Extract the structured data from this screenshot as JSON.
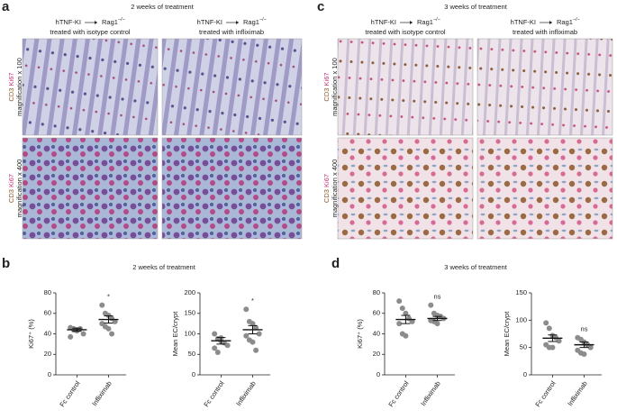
{
  "panels": [
    {
      "label": "a",
      "title": "2 weeks of treatment",
      "columns": [
        {
          "donor": "hTNF-KI",
          "recipient": "Rag1",
          "recipient_sup": "−/−",
          "treatment": "treated with isotype control"
        },
        {
          "donor": "hTNF-KI",
          "recipient": "Rag1",
          "recipient_sup": "−/−",
          "treatment": "treated with infliximab"
        }
      ],
      "rows": [
        {
          "stain_1": "CD3",
          "stain_2": "Ki67",
          "magnification": "magnification x 100"
        },
        {
          "stain_1": "CD3",
          "stain_2": "Ki67",
          "magnification": "magnification x 400"
        }
      ]
    },
    {
      "label": "b",
      "title": "2 weeks of treatment"
    },
    {
      "label": "c",
      "title": "3 weeks of treatment",
      "columns": [
        {
          "donor": "hTNF-KI",
          "recipient": "Rag1",
          "recipient_sup": "−/−",
          "treatment": "treated with isotype control"
        },
        {
          "donor": "hTNF-KI",
          "recipient": "Rag1",
          "recipient_sup": "−/−",
          "treatment": "treated with infliximab"
        }
      ],
      "rows": [
        {
          "stain_1": "CD3",
          "stain_2": "Ki67",
          "magnification": "magnification x 100"
        },
        {
          "stain_1": "CD3",
          "stain_2": "Ki67",
          "magnification": "magnification x 400"
        }
      ]
    },
    {
      "label": "d",
      "title": "3 weeks of treatment"
    }
  ],
  "chart_data": [
    {
      "type": "dot",
      "y_label": "Ki67⁺ (%)",
      "categories": [
        "Fc control",
        "Infliximab"
      ],
      "points": [
        [
          46,
          45,
          44,
          45,
          40,
          37,
          44,
          43
        ],
        [
          68,
          60,
          58,
          55,
          52,
          50,
          47,
          45,
          40
        ]
      ],
      "means": [
        44,
        54
      ],
      "sem": [
        1.5,
        3.5
      ],
      "significance": [
        null,
        "*"
      ],
      "ylim": [
        0,
        80
      ],
      "yticks": [
        0,
        20,
        40,
        60,
        80
      ],
      "color": "#8c8c8c"
    },
    {
      "type": "dot",
      "y_label": "Mean EC/crypt",
      "categories": [
        "Fc control",
        "Infliximab"
      ],
      "points": [
        [
          100,
          88,
          82,
          78,
          72,
          65,
          55,
          90
        ],
        [
          160,
          130,
          125,
          115,
          100,
          95,
          85,
          80,
          60
        ]
      ],
      "means": [
        83,
        110
      ],
      "sem": [
        8,
        10
      ],
      "significance": [
        null,
        "*"
      ],
      "ylim": [
        0,
        200
      ],
      "yticks": [
        0,
        50,
        100,
        150,
        200
      ],
      "color": "#8c8c8c"
    },
    {
      "type": "dot",
      "y_label": "Ki67⁺ (%)",
      "categories": [
        "Fc control",
        "Infliximab"
      ],
      "points": [
        [
          72,
          65,
          60,
          55,
          52,
          50,
          40,
          38
        ],
        [
          68,
          60,
          58,
          57,
          55,
          53,
          52,
          50
        ]
      ],
      "means": [
        54,
        55
      ],
      "sem": [
        4,
        2
      ],
      "significance": [
        null,
        "ns"
      ],
      "ylim": [
        0,
        80
      ],
      "yticks": [
        0,
        20,
        40,
        60,
        80
      ],
      "color": "#8c8c8c"
    },
    {
      "type": "dot",
      "y_label": "Mean EC/crypt",
      "categories": [
        "Fc control",
        "Infliximab"
      ],
      "points": [
        [
          95,
          85,
          72,
          68,
          62,
          55,
          50,
          50
        ],
        [
          68,
          65,
          60,
          55,
          50,
          45,
          40,
          38
        ]
      ],
      "means": [
        67,
        55
      ],
      "sem": [
        6,
        5
      ],
      "significance": [
        null,
        "ns"
      ],
      "ylim": [
        0,
        150
      ],
      "yticks": [
        0,
        50,
        100,
        150
      ],
      "color": "#8c8c8c"
    }
  ]
}
